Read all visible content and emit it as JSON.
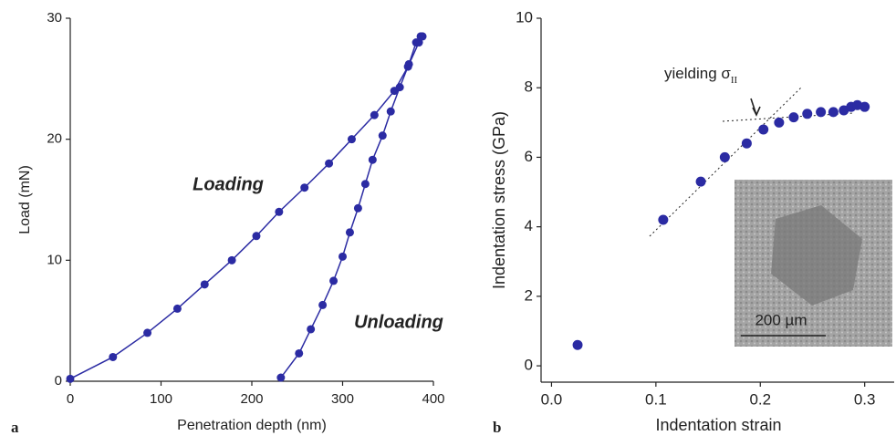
{
  "chart_data": [
    {
      "type": "line",
      "panel_label": "a",
      "x_label": "Penetration depth (nm)",
      "y_label": "Load (mN)",
      "xlim": [
        0,
        400
      ],
      "ylim": [
        0,
        30
      ],
      "xticks": [
        0,
        100,
        200,
        300,
        400
      ],
      "yticks": [
        0,
        10,
        20,
        30
      ],
      "series": [
        {
          "name": "Loading",
          "color": "#2b2ba3",
          "x": [
            0,
            47,
            85,
            118,
            148,
            178,
            205,
            230,
            258,
            285,
            310,
            335,
            357,
            372,
            384,
            388
          ],
          "values": [
            0.2,
            2,
            4,
            6,
            8,
            10,
            12,
            14,
            16,
            18,
            20,
            22,
            24,
            26,
            28,
            28.5
          ]
        },
        {
          "name": "Unloading",
          "color": "#2b2ba3",
          "x": [
            232,
            252,
            265,
            278,
            290,
            300,
            308,
            317,
            325,
            333,
            344,
            353,
            363,
            373,
            381,
            386
          ],
          "values": [
            0.3,
            2.3,
            4.3,
            6.3,
            8.3,
            10.3,
            12.3,
            14.3,
            16.3,
            18.3,
            20.3,
            22.3,
            24.3,
            26.2,
            28,
            28.5
          ]
        }
      ]
    },
    {
      "type": "scatter",
      "panel_label": "b",
      "x_label": "Indentation strain",
      "y_label": "Indentation stress (GPa)",
      "xlim": [
        -0.01,
        0.33
      ],
      "ylim": [
        -0.47,
        10
      ],
      "xticks": [
        {
          "value": 0,
          "label": "0.0"
        },
        0.1,
        0.2,
        0.3
      ],
      "yticks": [
        0,
        2,
        4,
        6,
        8,
        10
      ],
      "annotation": {
        "text": "yielding σ",
        "subscript": "II"
      },
      "inset_scale": "200 µm",
      "series": [
        {
          "color": "#2b2ba3",
          "x": [
            0.025,
            0.107,
            0.143,
            0.166,
            0.187,
            0.203,
            0.218,
            0.232,
            0.245,
            0.258,
            0.27,
            0.28,
            0.287,
            0.293,
            0.3
          ],
          "values": [
            0.6,
            4.2,
            5.3,
            6.0,
            6.4,
            6.8,
            7.0,
            7.15,
            7.25,
            7.3,
            7.3,
            7.35,
            7.45,
            7.5,
            7.45
          ]
        }
      ]
    }
  ]
}
